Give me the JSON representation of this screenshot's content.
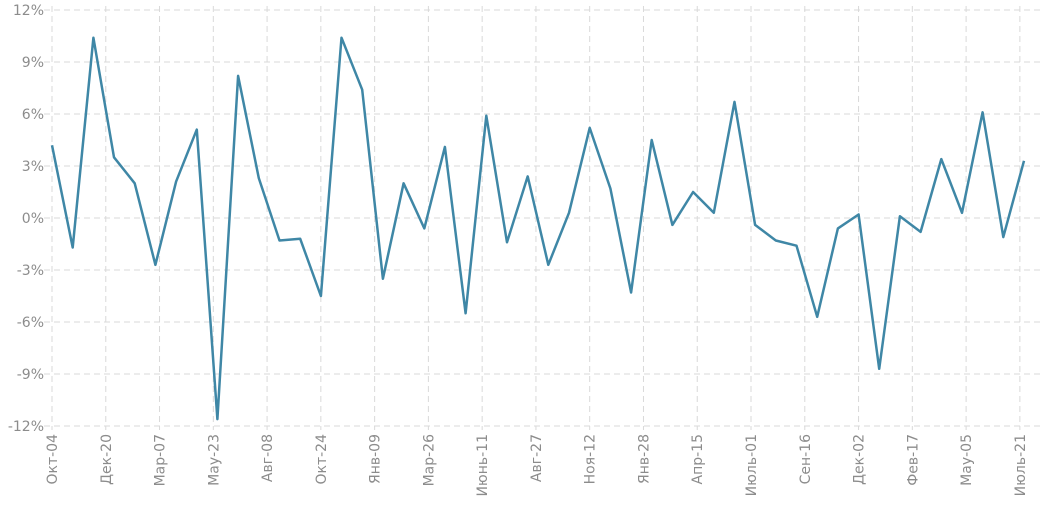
{
  "chart_data": {
    "type": "line",
    "title": "",
    "xlabel": "",
    "ylabel": "",
    "ylim": [
      -12,
      12
    ],
    "y_ticks": [
      12,
      9,
      6,
      3,
      0,
      -3,
      -6,
      -9,
      -12
    ],
    "y_tick_labels": [
      "12%",
      "9%",
      "6%",
      "3%",
      "0%",
      "-3%",
      "-6%",
      "-9%",
      "-12%"
    ],
    "x_tick_labels": [
      "Окт-04",
      "Дек-20",
      "Мар-07",
      "Мау-23",
      "Авг-08",
      "Окт-24",
      "Янв-09",
      "Мар-26",
      "Июнь-11",
      "Авг-27",
      "Ноя-12",
      "Янв-28",
      "Апр-15",
      "Июль-01",
      "Сен-16",
      "Дек-02",
      "Фев-17",
      "Мау-05",
      "Июль-21"
    ],
    "x_tick_indices": [
      0,
      2.6,
      5.2,
      7.8,
      10.4,
      13,
      15.6,
      18.2,
      20.8,
      23.4,
      26,
      28.6,
      31.2,
      33.8,
      36.4,
      39,
      41.6,
      44.2,
      46.8
    ],
    "grid": true,
    "legend": "none",
    "color": "#3f87a6",
    "series": [
      {
        "values": [
          4.2,
          -1.7,
          10.4,
          3.5,
          2.0,
          -2.7,
          2.1,
          5.1,
          -11.6,
          8.2,
          2.3,
          -1.3,
          -1.2,
          -4.5,
          10.4,
          7.4,
          -3.5,
          2.0,
          -0.6,
          4.1,
          -5.5,
          5.9,
          -1.4,
          2.4,
          -2.7,
          0.3,
          5.2,
          1.7,
          -4.3,
          4.5,
          -0.4,
          1.5,
          0.3,
          6.7,
          -0.4,
          -1.3,
          -1.6,
          -5.7,
          -0.6,
          0.2,
          -8.7,
          0.1,
          -0.8,
          3.4,
          0.3,
          6.1,
          -1.1,
          3.3
        ]
      }
    ]
  }
}
